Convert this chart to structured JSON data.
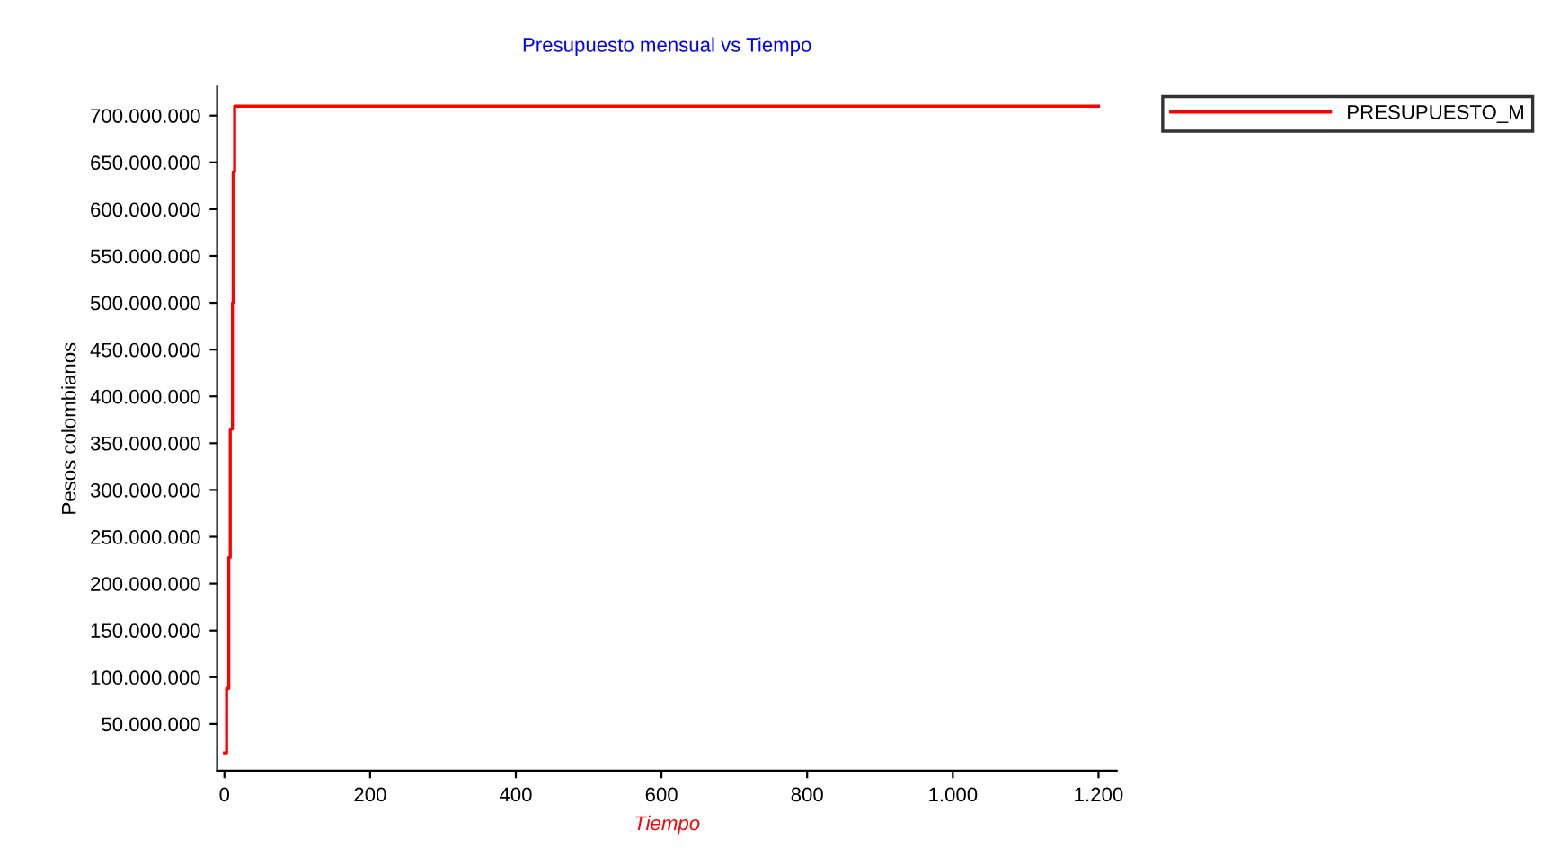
{
  "chart_data": {
    "type": "step",
    "title": "Presupuesto mensual vs Tiempo",
    "xlabel": "Tiempo",
    "ylabel": "Pesos colombianos",
    "x": [
      0,
      3,
      6,
      8,
      11,
      12,
      14,
      1200
    ],
    "series": [
      {
        "name": "PRESUPUESTO_M",
        "color": "#ff0000",
        "values": [
          19000000,
          88000000,
          228000000,
          365000000,
          500000000,
          640000000,
          710000000,
          710000000
        ]
      }
    ],
    "xlim": [
      -10,
      1225
    ],
    "ylim": [
      0,
      731000000
    ],
    "xticks": [
      0,
      200,
      400,
      600,
      800,
      {
        "value": 1000,
        "label": "1.000"
      },
      {
        "value": 1200,
        "label": "1.200"
      }
    ],
    "yticks": [
      {
        "value": 50000000,
        "label": "50.000.000"
      },
      {
        "value": 100000000,
        "label": "100.000.000"
      },
      {
        "value": 150000000,
        "label": "150.000.000"
      },
      {
        "value": 200000000,
        "label": "200.000.000"
      },
      {
        "value": 250000000,
        "label": "250.000.000"
      },
      {
        "value": 300000000,
        "label": "300.000.000"
      },
      {
        "value": 350000000,
        "label": "350.000.000"
      },
      {
        "value": 400000000,
        "label": "400.000.000"
      },
      {
        "value": 450000000,
        "label": "450.000.000"
      },
      {
        "value": 500000000,
        "label": "500.000.000"
      },
      {
        "value": 550000000,
        "label": "550.000.000"
      },
      {
        "value": 600000000,
        "label": "600.000.000"
      },
      {
        "value": 650000000,
        "label": "650.000.000"
      },
      {
        "value": 700000000,
        "label": "700.000.000"
      }
    ],
    "grid": false,
    "legend": "top right",
    "marker": "none",
    "line_style": "solid"
  }
}
